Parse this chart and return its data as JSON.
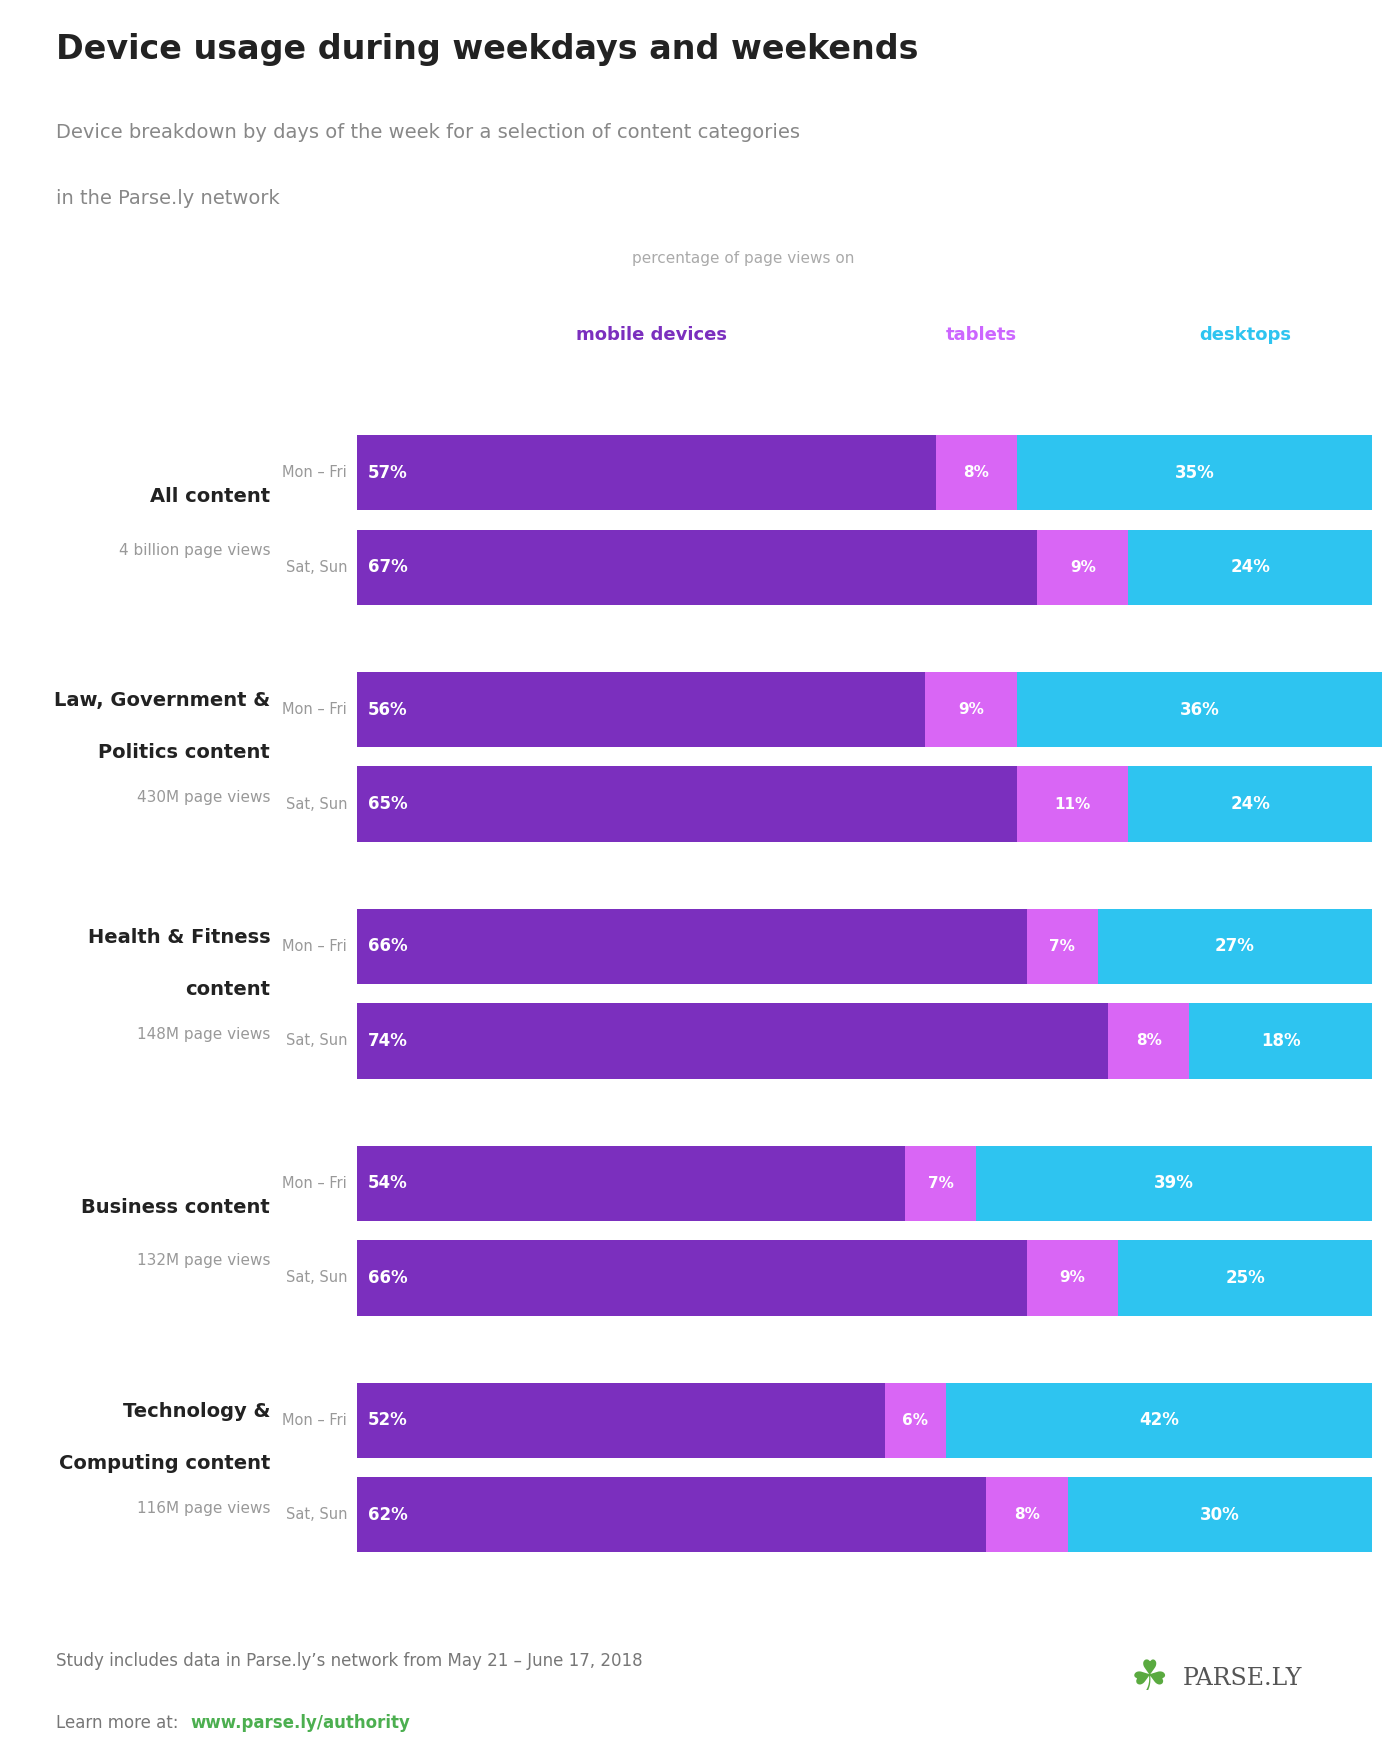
{
  "title": "Device usage during weekdays and weekends",
  "subtitle_line1": "Device breakdown by days of the week for a selection of content categories",
  "subtitle_line2": "in the Parse.ly network",
  "header_label": "percentage of page views on",
  "categories": [
    {
      "name_lines": [
        "All content"
      ],
      "subname": "4 billion page views",
      "rows": [
        {
          "label": "Mon – Fri",
          "mobile": 57,
          "tablet": 8,
          "desktop": 35
        },
        {
          "label": "Sat, Sun",
          "mobile": 67,
          "tablet": 9,
          "desktop": 24
        }
      ]
    },
    {
      "name_lines": [
        "Law, Government &",
        "Politics content"
      ],
      "subname": "430M page views",
      "rows": [
        {
          "label": "Mon – Fri",
          "mobile": 56,
          "tablet": 9,
          "desktop": 36
        },
        {
          "label": "Sat, Sun",
          "mobile": 65,
          "tablet": 11,
          "desktop": 24
        }
      ]
    },
    {
      "name_lines": [
        "Health & Fitness",
        "content"
      ],
      "subname": "148M page views",
      "rows": [
        {
          "label": "Mon – Fri",
          "mobile": 66,
          "tablet": 7,
          "desktop": 27
        },
        {
          "label": "Sat, Sun",
          "mobile": 74,
          "tablet": 8,
          "desktop": 18
        }
      ]
    },
    {
      "name_lines": [
        "Business content"
      ],
      "subname": "132M page views",
      "rows": [
        {
          "label": "Mon – Fri",
          "mobile": 54,
          "tablet": 7,
          "desktop": 39
        },
        {
          "label": "Sat, Sun",
          "mobile": 66,
          "tablet": 9,
          "desktop": 25
        }
      ]
    },
    {
      "name_lines": [
        "Technology &",
        "Computing content"
      ],
      "subname": "116M page views",
      "rows": [
        {
          "label": "Mon – Fri",
          "mobile": 52,
          "tablet": 6,
          "desktop": 42
        },
        {
          "label": "Sat, Sun",
          "mobile": 62,
          "tablet": 8,
          "desktop": 30
        }
      ]
    }
  ],
  "mobile_color": "#7b2fbe",
  "tablet_color": "#d966f5",
  "desktop_color": "#2ec4f0",
  "mobile_label_color": "#7b2fbe",
  "tablet_label_color": "#cc66ff",
  "desktop_label_color": "#2ec4f0",
  "bg_color": "#ffffff",
  "footer_bg": "#e8e8e8",
  "footer_text1": "Study includes data in Parse.ly’s network from May 21 – June 17, 2018",
  "footer_text2_prefix": "Learn more at:  ",
  "footer_url": "www.parse.ly/authority",
  "footer_url_color": "#4caf50",
  "footer_text_color": "#777777",
  "title_color": "#222222",
  "subtitle_color": "#888888",
  "category_name_color": "#222222",
  "category_sub_color": "#999999",
  "day_label_color": "#999999",
  "header_label_color": "#aaaaaa"
}
